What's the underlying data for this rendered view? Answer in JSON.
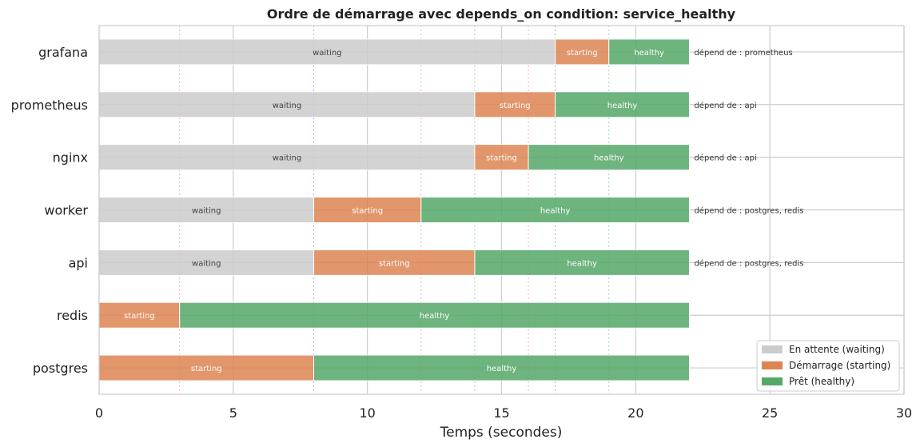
{
  "chart_data": {
    "type": "bar",
    "orientation": "horizontal-stacked",
    "title": "Ordre de démarrage avec depends_on condition: service_healthy",
    "xlabel": "Temps (secondes)",
    "ylabel": "",
    "xlim": [
      0,
      30
    ],
    "xticks": [
      "0",
      "5",
      "10",
      "15",
      "20",
      "25",
      "30"
    ],
    "grid": true,
    "legend_position": "bottom-right",
    "colors": {
      "waiting": "#cccccc",
      "starting": "#dd8452",
      "healthy": "#55a868"
    },
    "legend": [
      {
        "key": "waiting",
        "label": "En attente (waiting)"
      },
      {
        "key": "starting",
        "label": "Démarrage (starting)"
      },
      {
        "key": "healthy",
        "label": "Prêt (healthy)"
      }
    ],
    "services": [
      {
        "name": "grafana",
        "segments": [
          {
            "phase": "waiting",
            "label": "waiting",
            "start": 0,
            "end": 17
          },
          {
            "phase": "starting",
            "label": "starting",
            "start": 17,
            "end": 19
          },
          {
            "phase": "healthy",
            "label": "healthy",
            "start": 19,
            "end": 22
          }
        ],
        "depends": "dépend de : prometheus"
      },
      {
        "name": "prometheus",
        "segments": [
          {
            "phase": "waiting",
            "label": "waiting",
            "start": 0,
            "end": 14
          },
          {
            "phase": "starting",
            "label": "starting",
            "start": 14,
            "end": 17
          },
          {
            "phase": "healthy",
            "label": "healthy",
            "start": 17,
            "end": 22
          }
        ],
        "depends": "dépend de : api"
      },
      {
        "name": "nginx",
        "segments": [
          {
            "phase": "waiting",
            "label": "waiting",
            "start": 0,
            "end": 14
          },
          {
            "phase": "starting",
            "label": "starting",
            "start": 14,
            "end": 16
          },
          {
            "phase": "healthy",
            "label": "healthy",
            "start": 16,
            "end": 22
          }
        ],
        "depends": "dépend de : api"
      },
      {
        "name": "worker",
        "segments": [
          {
            "phase": "waiting",
            "label": "waiting",
            "start": 0,
            "end": 8
          },
          {
            "phase": "starting",
            "label": "starting",
            "start": 8,
            "end": 12
          },
          {
            "phase": "healthy",
            "label": "healthy",
            "start": 12,
            "end": 22
          }
        ],
        "depends": "dépend de : postgres, redis"
      },
      {
        "name": "api",
        "segments": [
          {
            "phase": "waiting",
            "label": "waiting",
            "start": 0,
            "end": 8
          },
          {
            "phase": "starting",
            "label": "starting",
            "start": 8,
            "end": 14
          },
          {
            "phase": "healthy",
            "label": "healthy",
            "start": 14,
            "end": 22
          }
        ],
        "depends": "dépend de : postgres, redis"
      },
      {
        "name": "redis",
        "segments": [
          {
            "phase": "starting",
            "label": "starting",
            "start": 0,
            "end": 3
          },
          {
            "phase": "healthy",
            "label": "healthy",
            "start": 3,
            "end": 22
          }
        ],
        "depends": ""
      },
      {
        "name": "postgres",
        "segments": [
          {
            "phase": "starting",
            "label": "starting",
            "start": 0,
            "end": 8
          },
          {
            "phase": "healthy",
            "label": "healthy",
            "start": 8,
            "end": 22
          }
        ],
        "depends": ""
      }
    ],
    "healthy_markers": [
      {
        "x": 3,
        "color": "#ff9da7"
      },
      {
        "x": 8,
        "color": "#a0a0ff"
      },
      {
        "x": 12,
        "color": "#ff9da7"
      },
      {
        "x": 14,
        "color": "#8fd19e"
      },
      {
        "x": 16,
        "color": "#ff9da7"
      },
      {
        "x": 17,
        "color": "#80c080"
      },
      {
        "x": 19,
        "color": "#8fd19e"
      }
    ]
  }
}
